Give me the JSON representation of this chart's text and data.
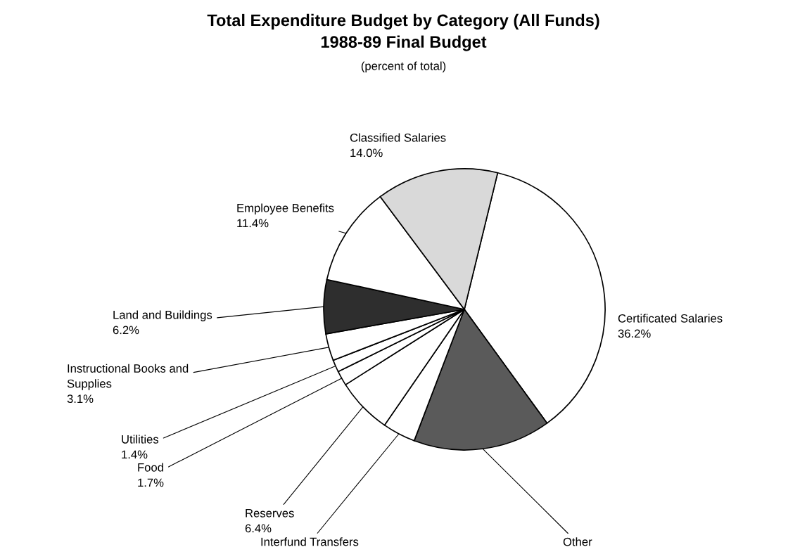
{
  "chart_data": {
    "type": "pie",
    "title": "Total Expenditure Budget by Category (All Funds)\n1988-89 Final Budget",
    "subtitle": "(percent of total)",
    "categories": [
      "Certificated Salaries",
      "Other",
      "Interfund Transfers",
      "Reserves",
      "Food",
      "Utilities",
      "Instructional Books and\nSupplies",
      "Land and Buildings",
      "Employee Benefits",
      "Classified Salaries"
    ],
    "values": [
      36.2,
      15.8,
      3.8,
      6.4,
      1.7,
      1.4,
      3.1,
      6.2,
      11.4,
      14.0
    ],
    "value_labels": [
      "36.2%",
      null,
      null,
      "6.4%",
      "1.7%",
      "1.4%",
      "3.1%",
      "6.2%",
      "11.4%",
      "14.0%"
    ],
    "colors": [
      "#ffffff",
      "#5a5a5a",
      "#ffffff",
      "#ffffff",
      "#ffffff",
      "#ffffff",
      "#ffffff",
      "#2e2e2e",
      "#ffffff",
      "#d9d9d9"
    ],
    "legend": false
  }
}
